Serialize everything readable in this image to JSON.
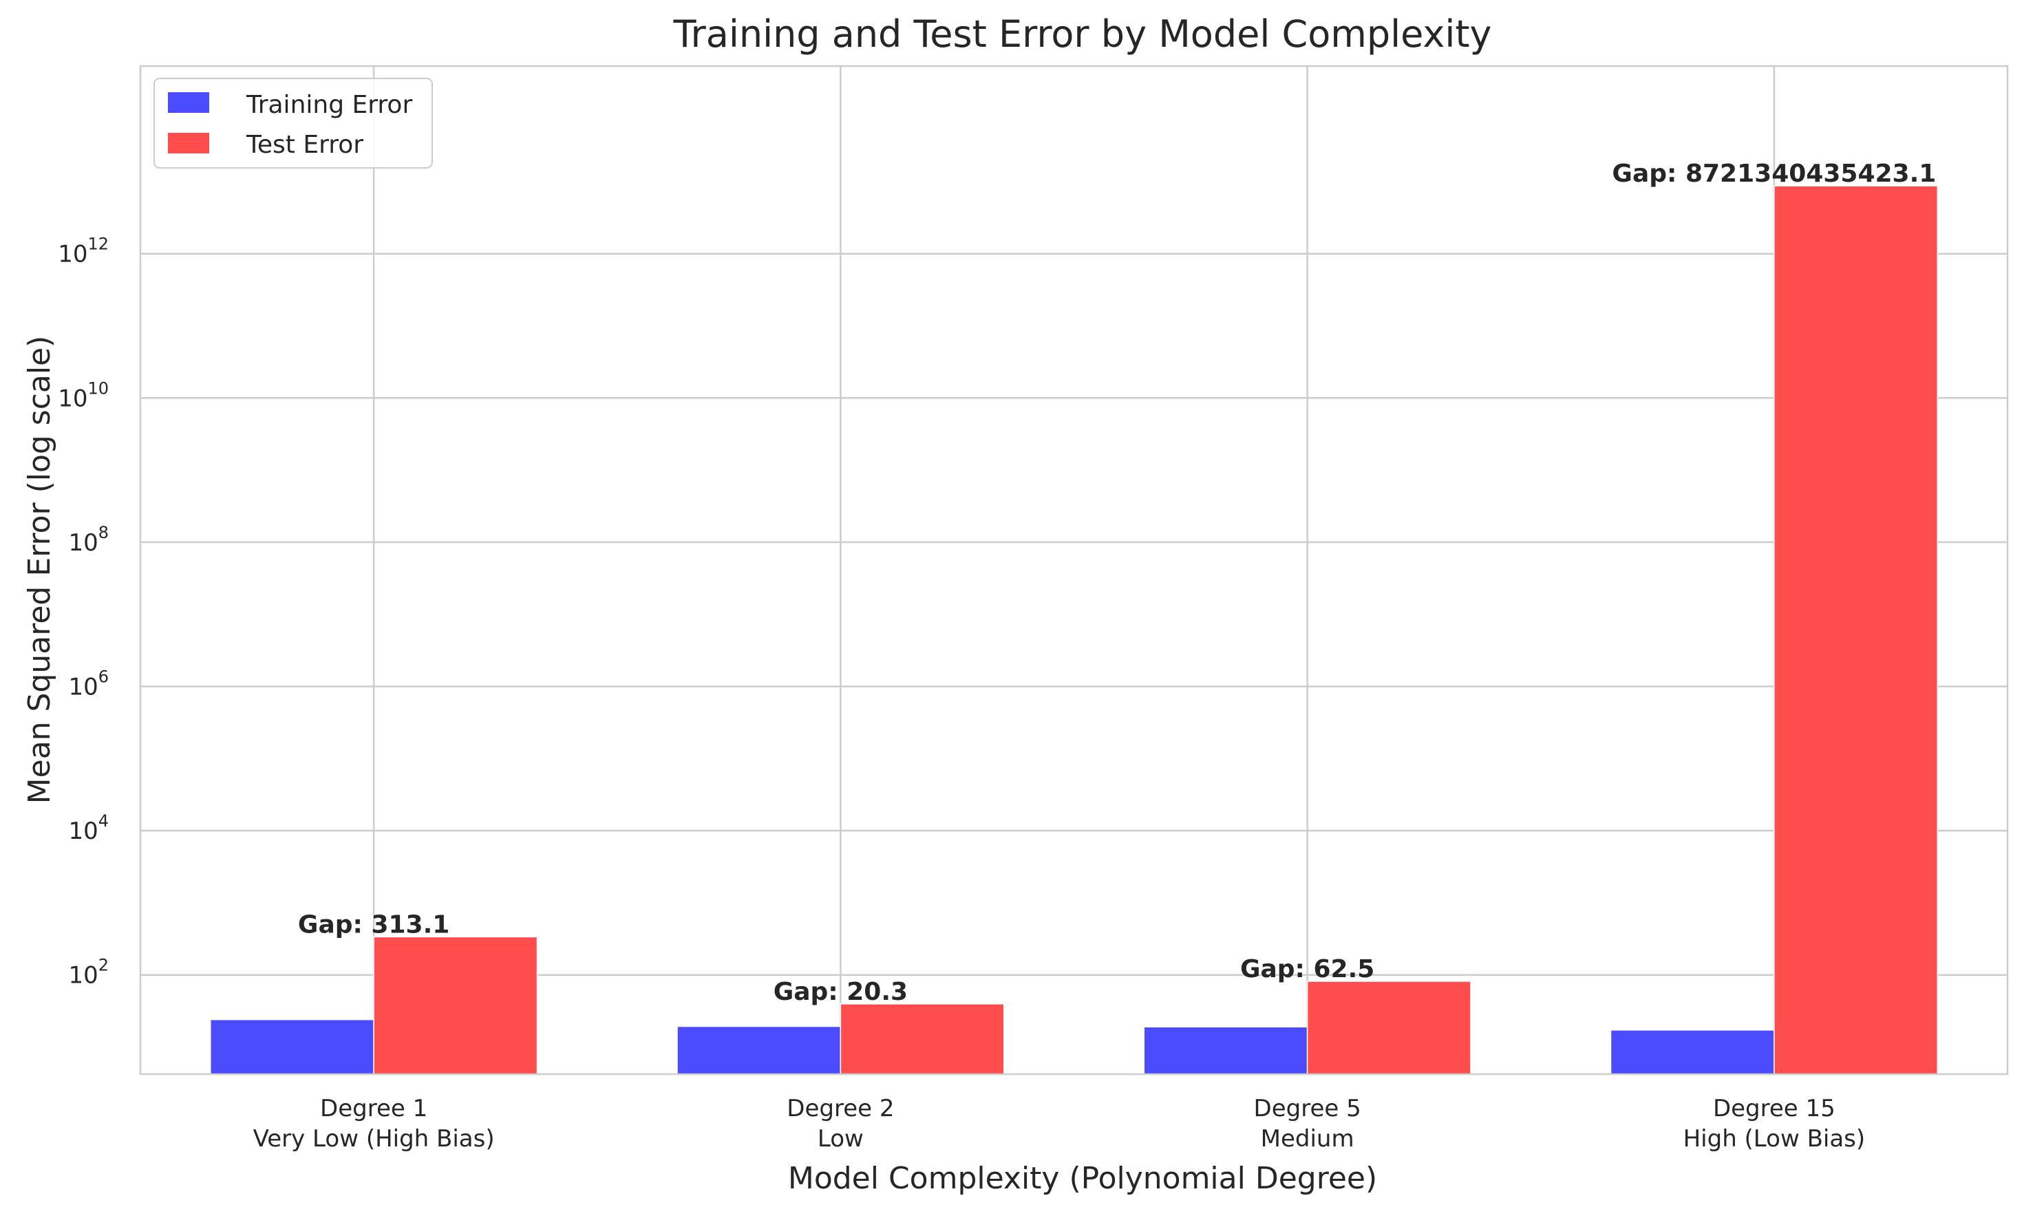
{
  "chart_data": {
    "type": "bar",
    "title": "Training and Test Error by Model Complexity",
    "xlabel": "Model Complexity (Polynomial Degree)",
    "ylabel": "Mean Squared Error (log scale)",
    "yscale": "log",
    "ylim": [
      4.2,
      400000000000000
    ],
    "yticks": [
      {
        "value": 100,
        "base": "10",
        "exp": "2"
      },
      {
        "value": 10000,
        "base": "10",
        "exp": "4"
      },
      {
        "value": 1000000,
        "base": "10",
        "exp": "6"
      },
      {
        "value": 100000000,
        "base": "10",
        "exp": "8"
      },
      {
        "value": 10000000000,
        "base": "10",
        "exp": "10"
      },
      {
        "value": 1000000000000,
        "base": "10",
        "exp": "12"
      }
    ],
    "categories": [
      {
        "line1": "Degree 1",
        "line2": "Very Low (High Bias)"
      },
      {
        "line1": "Degree 2",
        "line2": "Low"
      },
      {
        "line1": "Degree 5",
        "line2": "Medium"
      },
      {
        "line1": "Degree 15",
        "line2": "High (Low Bias)"
      }
    ],
    "series": [
      {
        "name": "Training Error",
        "color": "#4c4cff",
        "values": [
          24.0,
          19.3,
          19.0,
          17.2
        ]
      },
      {
        "name": "Test Error",
        "color": "#ff4c4c",
        "values": [
          337.1,
          39.6,
          81.5,
          8721340435440.3
        ]
      }
    ],
    "annotations": [
      "Gap: 313.1",
      "Gap: 20.3",
      "Gap: 62.5",
      "Gap: 8721340435423.1"
    ],
    "grid": true,
    "legend": "top-left"
  }
}
